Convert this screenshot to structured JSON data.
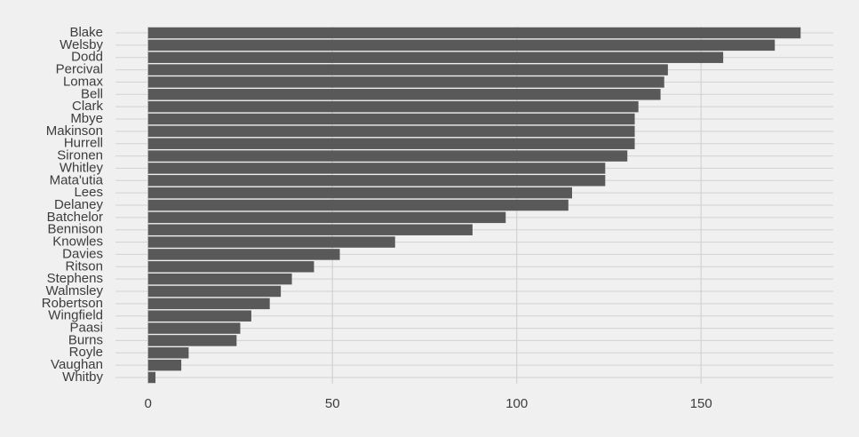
{
  "chart_data": {
    "type": "bar",
    "orientation": "horizontal",
    "categories": [
      "Blake",
      "Welsby",
      "Dodd",
      "Percival",
      "Lomax",
      "Bell",
      "Clark",
      "Mbye",
      "Makinson",
      "Hurrell",
      "Sironen",
      "Whitley",
      "Mata'utia",
      "Lees",
      "Delaney",
      "Batchelor",
      "Bennison",
      "Knowles",
      "Davies",
      "Ritson",
      "Stephens",
      "Walmsley",
      "Robertson",
      "Wingfield",
      "Paasi",
      "Burns",
      "Royle",
      "Vaughan",
      "Whitby"
    ],
    "values": [
      177,
      170,
      156,
      141,
      140,
      139,
      133,
      132,
      132,
      132,
      130,
      124,
      124,
      115,
      114,
      97,
      88,
      67,
      52,
      45,
      39,
      36,
      33,
      28,
      25,
      24,
      11,
      9,
      2
    ],
    "color": "#595959",
    "xlim": [
      -8.85,
      185.85
    ],
    "xticks": [
      0,
      50,
      100,
      150
    ],
    "grid": true
  }
}
